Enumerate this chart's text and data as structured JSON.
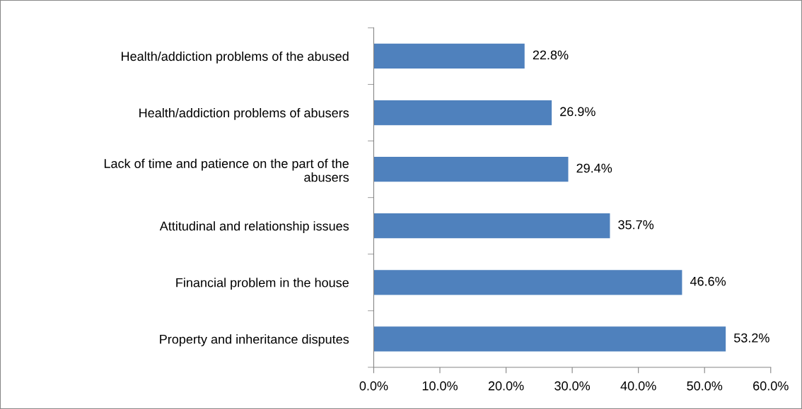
{
  "chart_data": {
    "type": "bar",
    "orientation": "horizontal",
    "categories": [
      "Health/addiction problems of the abused",
      "Health/addiction problems of abusers",
      "Lack of time and patience on the part of the\nabusers",
      "Attitudinal and relationship issues",
      "Financial problem in the house",
      "Property and inheritance disputes"
    ],
    "values": [
      22.8,
      26.9,
      29.4,
      35.7,
      46.6,
      53.2
    ],
    "value_labels": [
      "22.8%",
      "26.9%",
      "29.4%",
      "35.7%",
      "46.6%",
      "53.2%"
    ],
    "color": "#4f81bd",
    "xlim": [
      0,
      60
    ],
    "xticks": [
      {
        "value": 0,
        "label": "0.0%"
      },
      {
        "value": 10,
        "label": "10.0%"
      },
      {
        "value": 20,
        "label": "20.0%"
      },
      {
        "value": 30,
        "label": "30.0%"
      },
      {
        "value": 40,
        "label": "40.0%"
      },
      {
        "value": 50,
        "label": "50.0%"
      },
      {
        "value": 60,
        "label": "60.0%"
      }
    ],
    "grid": false,
    "legend": false
  }
}
